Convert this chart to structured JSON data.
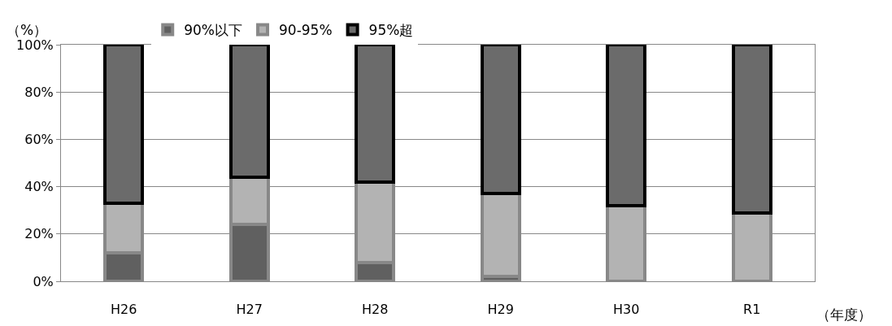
{
  "chart_data": {
    "type": "bar",
    "stacked": true,
    "categories": [
      "H26",
      "H27",
      "H28",
      "H29",
      "H30",
      "R1"
    ],
    "series": [
      {
        "name": "90%以下",
        "color": "#606060",
        "values": [
          12,
          24,
          8,
          2,
          null,
          null
        ]
      },
      {
        "name": "90-95%",
        "color": "#b3b3b3",
        "values": [
          21,
          20,
          34,
          35,
          32,
          29
        ]
      },
      {
        "name": "95%超",
        "color": "#6b6b6b",
        "values": [
          67,
          56,
          58,
          63,
          68,
          71
        ]
      }
    ],
    "ylabel": "（%）",
    "xlabel": "（年度）",
    "ylim": [
      0,
      100
    ],
    "yticks": [
      {
        "value": 0,
        "label": "0%"
      },
      {
        "value": 20,
        "label": "20%"
      },
      {
        "value": 40,
        "label": "40%"
      },
      {
        "value": 60,
        "label": "60%"
      },
      {
        "value": 80,
        "label": "80%"
      },
      {
        "value": 100,
        "label": "100%"
      }
    ],
    "grid": "y",
    "legend": "top left"
  }
}
